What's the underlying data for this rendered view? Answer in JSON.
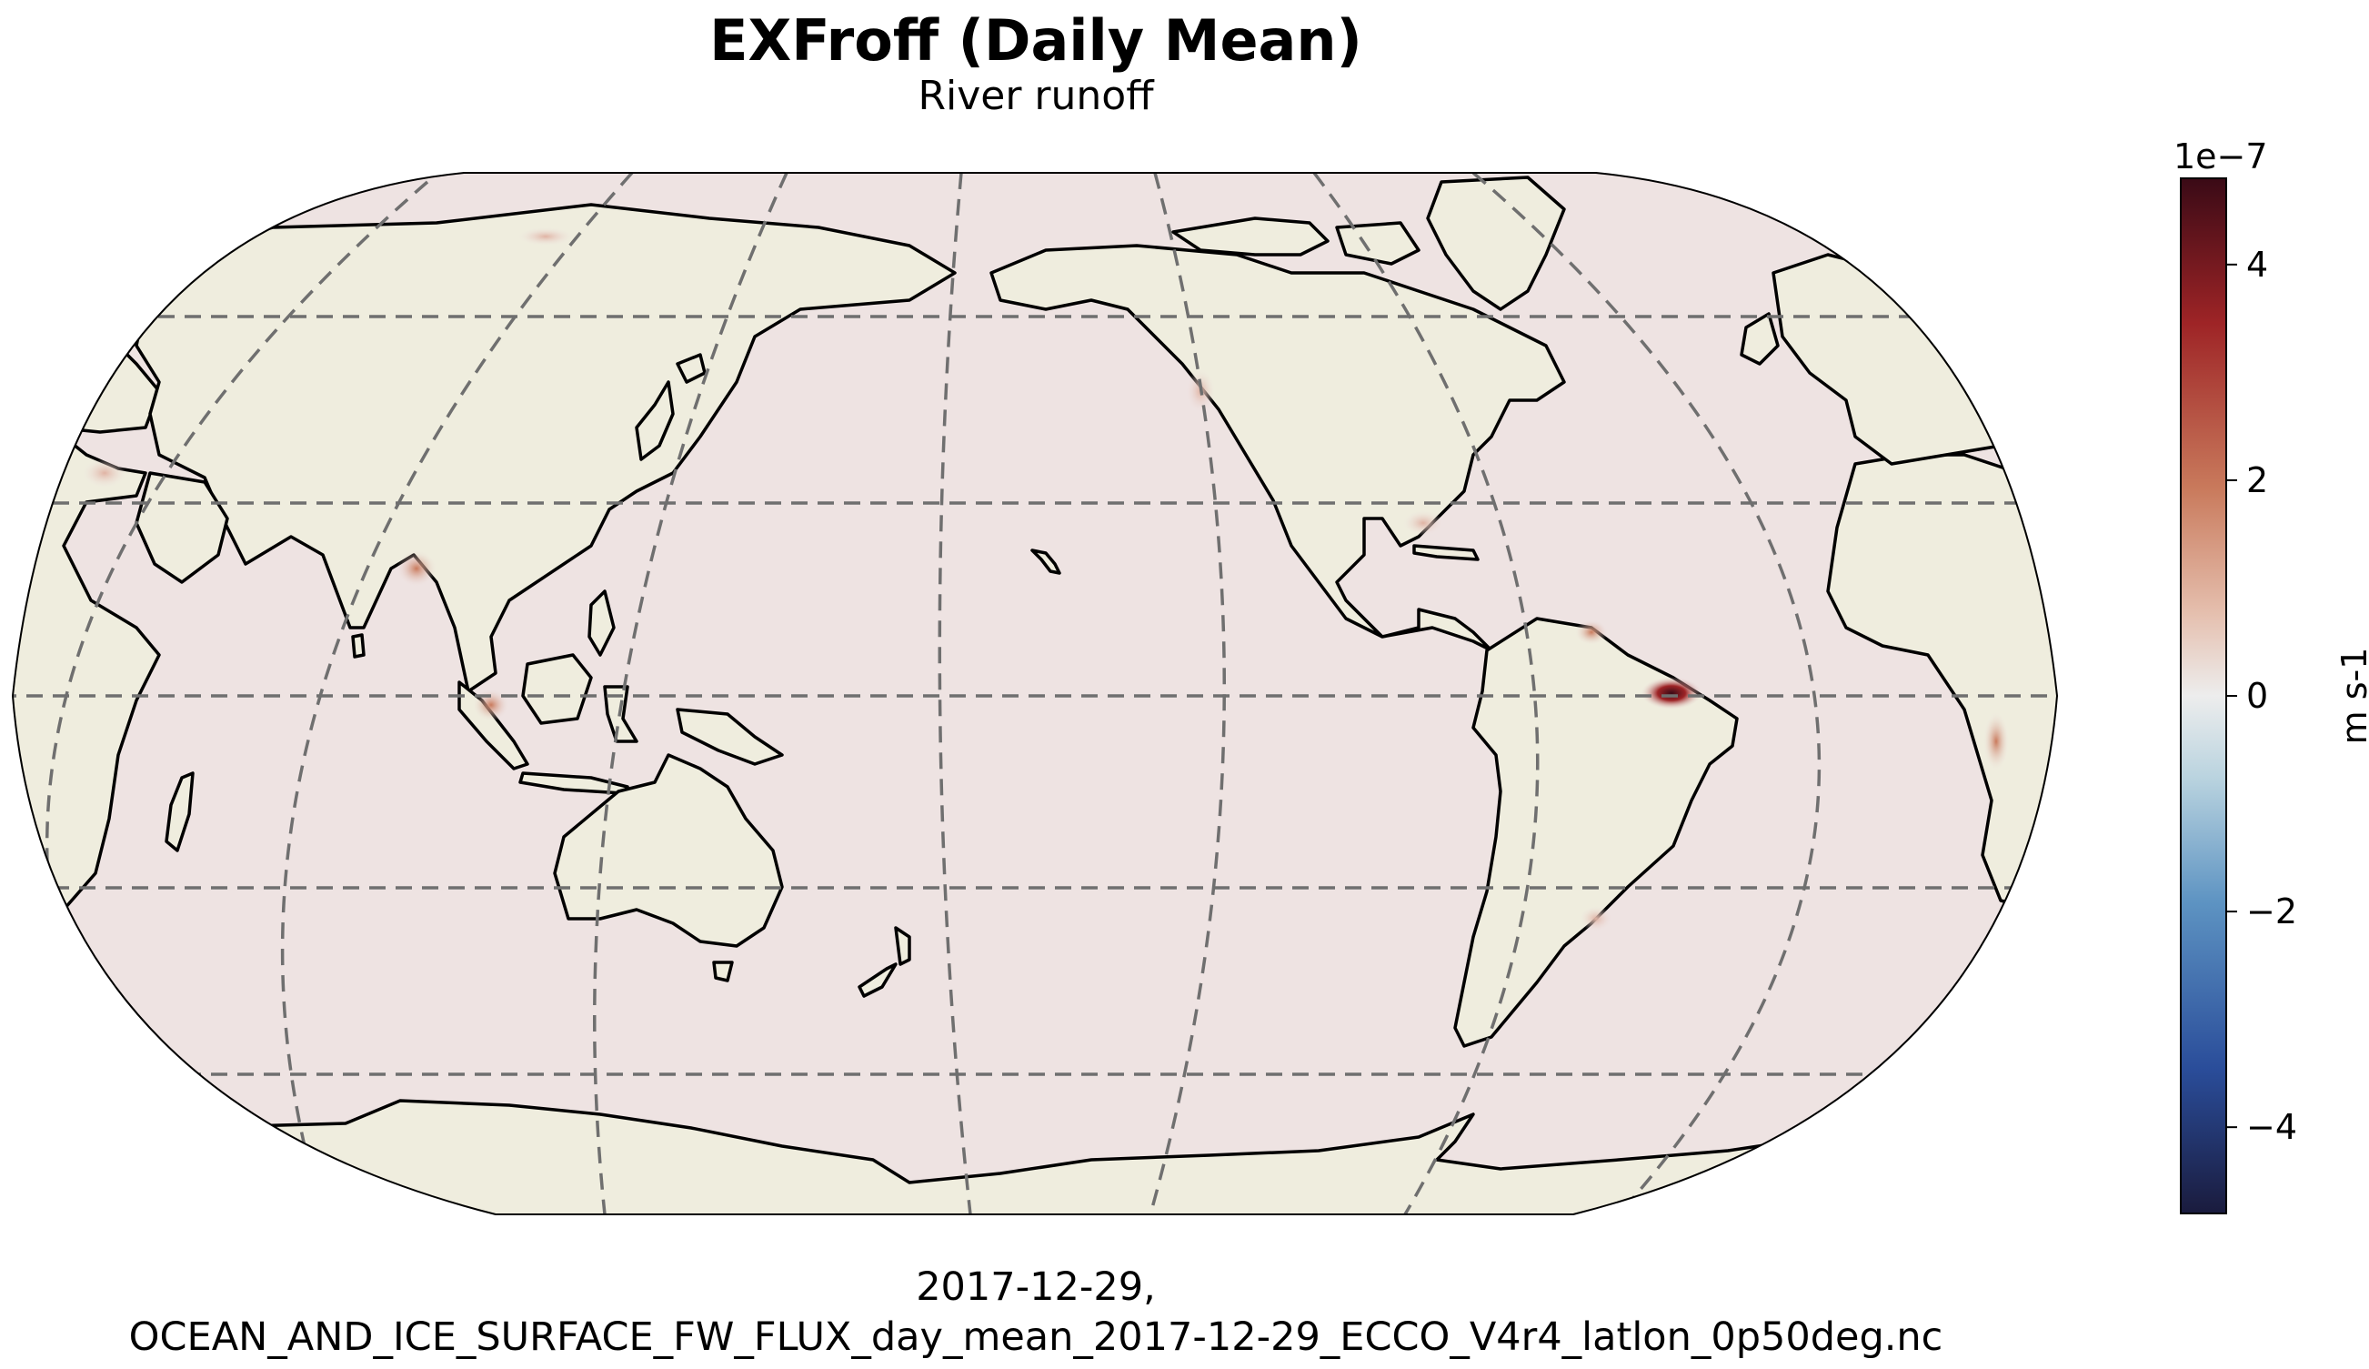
{
  "title": "EXFroff (Daily Mean)",
  "subtitle": "River runoff",
  "footer": {
    "line1": "2017-12-29,",
    "line2": "OCEAN_AND_ICE_SURFACE_FW_FLUX_day_mean_2017-12-29_ECCO_V4r4_latlon_0p50deg.nc"
  },
  "colorbar": {
    "multiplier": "1e−7",
    "label": "m s-1",
    "ticks": [
      "4",
      "2",
      "0",
      "−2",
      "−4"
    ],
    "tick_values": [
      4,
      2,
      0,
      -2,
      -4
    ],
    "range": [
      -4.8,
      4.8
    ],
    "colormap": [
      "#1a1b3d",
      "#2a4d9a",
      "#5d93c2",
      "#b9d3df",
      "#ededed",
      "#e5bfae",
      "#c97a5c",
      "#9e2426",
      "#3a0a16"
    ]
  },
  "map": {
    "projection": "Robinson",
    "central_longitude": 180,
    "land_color": "#efedde",
    "ocean_color": "#eee3e2",
    "gridlines": "dashed",
    "hotspots": [
      "Amazon mouth",
      "Congo mouth",
      "Orinoco mouth",
      "Ganges delta",
      "Borneo",
      "Rio de la Plata"
    ]
  }
}
